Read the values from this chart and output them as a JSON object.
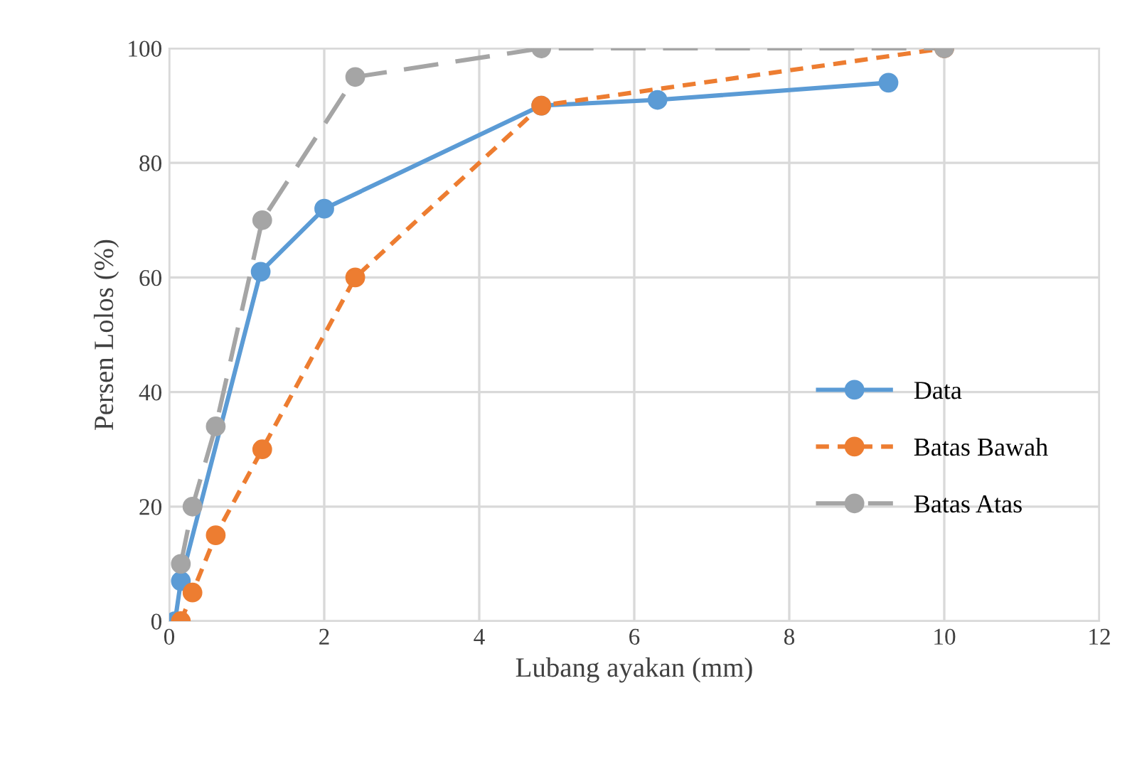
{
  "chart_data": {
    "type": "line",
    "xlabel": "Lubang ayakan (mm)",
    "ylabel": "Persen Lolos (%)",
    "xlim": [
      0,
      12
    ],
    "xticks": [
      0,
      2,
      4,
      6,
      8,
      10,
      12
    ],
    "ylim": [
      0,
      100
    ],
    "yticks": [
      0,
      20,
      40,
      60,
      80,
      100
    ],
    "grid": true,
    "legend": "right",
    "marker": "circle",
    "series": [
      {
        "name": "Data",
        "color": "#5b9bd5",
        "line_style": "solid",
        "x": [
          0.075,
          0.15,
          1.18,
          2,
          4.8,
          6.3,
          9.28
        ],
        "values": [
          0,
          7,
          61,
          72,
          90,
          91,
          94
        ]
      },
      {
        "name": "Batas Bawah",
        "color": "#ed7d31",
        "line_style": "dotted",
        "x": [
          0.15,
          0.3,
          0.6,
          1.2,
          2.4,
          4.8,
          10
        ],
        "values": [
          0,
          5,
          15,
          30,
          60,
          90,
          100
        ]
      },
      {
        "name": "Batas Atas",
        "color": "#a5a5a5",
        "line_style": "dashed",
        "x": [
          0.15,
          0.3,
          0.6,
          1.2,
          2.4,
          4.8,
          10
        ],
        "values": [
          10,
          20,
          34,
          70,
          95,
          100,
          100
        ]
      }
    ]
  }
}
